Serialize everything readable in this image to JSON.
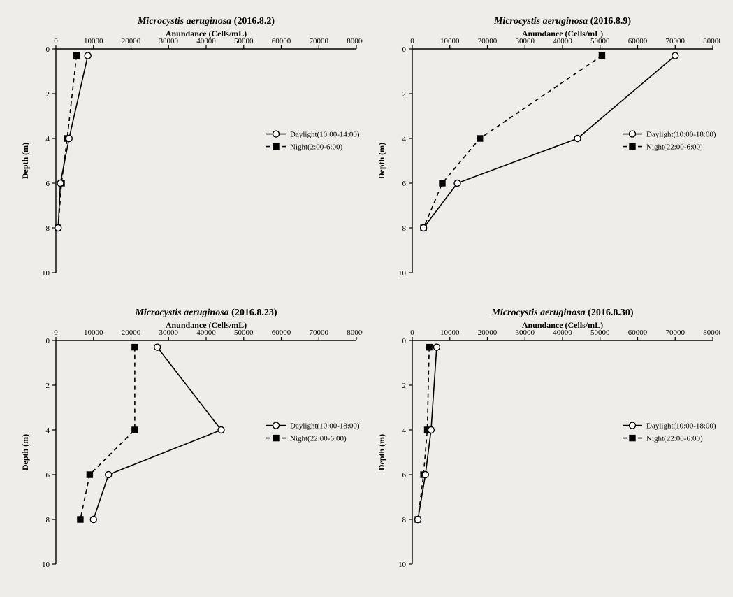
{
  "global": {
    "background_color": "#eeede9",
    "plot_color": "#000000",
    "font_family": "Times New Roman",
    "title_fontsize": 14,
    "title_fontweight": "bold",
    "axis_label_fontsize": 12,
    "tick_fontsize": 11,
    "legend_fontsize": 11,
    "xlabel": "Anundance (Cells/mL)",
    "ylabel": "Depth (m)",
    "xlim": [
      0,
      80000
    ],
    "xtick_step": 10000,
    "ylim": [
      0,
      10
    ],
    "ytick_step": 2,
    "line_width": 1.6,
    "series_styles": {
      "daylight": {
        "marker": "circle-open",
        "marker_size": 4.5,
        "dash": "solid",
        "color": "#000000"
      },
      "night": {
        "marker": "square-filled",
        "marker_size": 4.2,
        "dash": "dashed",
        "color": "#000000"
      }
    }
  },
  "panels": [
    {
      "id": "p1",
      "title_species": "Microcystis aeruginosa",
      "title_date": "(2016.8.2)",
      "legend": {
        "daylight": "Daylight(10:00-14:00)",
        "night": "Night(2:00-6:00)"
      },
      "series": {
        "daylight": {
          "depth": [
            0.3,
            4,
            6,
            8
          ],
          "abundance": [
            8500,
            3500,
            1200,
            600
          ]
        },
        "night": {
          "depth": [
            0.3,
            4,
            6,
            8
          ],
          "abundance": [
            5500,
            3000,
            1500,
            600
          ]
        }
      }
    },
    {
      "id": "p2",
      "title_species": "Microcystis aeruginosa",
      "title_date": "(2016.8.9)",
      "legend": {
        "daylight": "Daylight(10:00-18:00)",
        "night": "Night(22:00-6:00)"
      },
      "series": {
        "daylight": {
          "depth": [
            0.3,
            4,
            6,
            8
          ],
          "abundance": [
            70000,
            44000,
            12000,
            3000
          ]
        },
        "night": {
          "depth": [
            0.3,
            4,
            6,
            8
          ],
          "abundance": [
            50500,
            18000,
            8000,
            3000
          ]
        }
      }
    },
    {
      "id": "p3",
      "title_species": "Microcystis aeruginosa",
      "title_date": "(2016.8.23)",
      "legend": {
        "daylight": "Daylight(10:00-18:00)",
        "night": "Night(22:00-6:00)"
      },
      "series": {
        "daylight": {
          "depth": [
            0.3,
            4,
            6,
            8
          ],
          "abundance": [
            27000,
            44000,
            14000,
            10000
          ]
        },
        "night": {
          "depth": [
            0.3,
            4,
            6,
            8
          ],
          "abundance": [
            21000,
            21000,
            9000,
            6500
          ]
        }
      }
    },
    {
      "id": "p4",
      "title_species": "Microcystis aeruginosa",
      "title_date": "(2016.8.30)",
      "legend": {
        "daylight": "Daylight(10:00-18:00)",
        "night": "Night(22:00-6:00)"
      },
      "series": {
        "daylight": {
          "depth": [
            0.3,
            4,
            6,
            8
          ],
          "abundance": [
            6500,
            5000,
            3500,
            1500
          ]
        },
        "night": {
          "depth": [
            0.3,
            4,
            6,
            8
          ],
          "abundance": [
            4500,
            4000,
            3000,
            1500
          ]
        }
      }
    }
  ]
}
